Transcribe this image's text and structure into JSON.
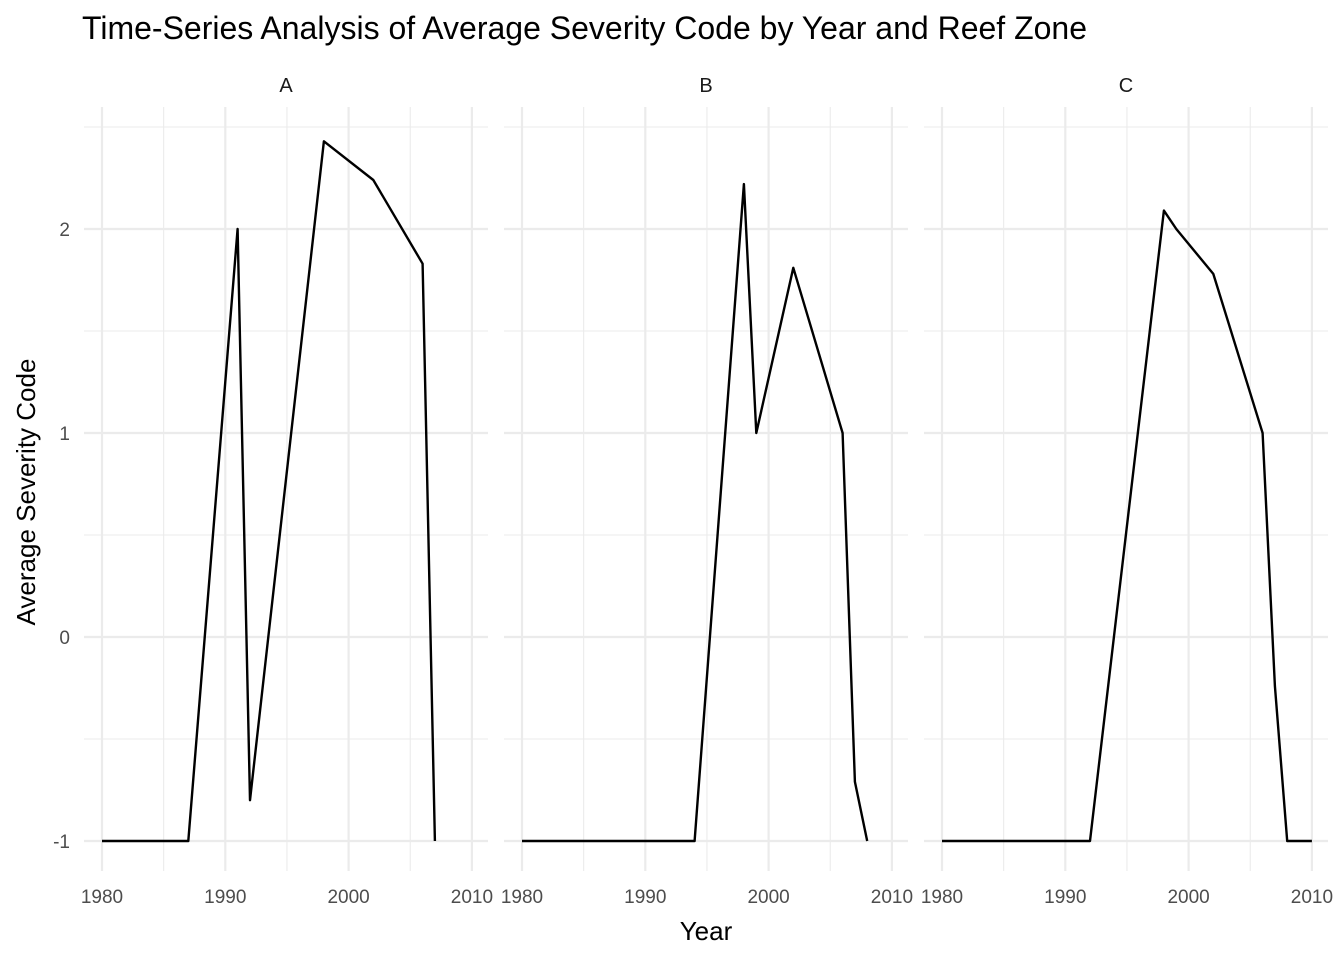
{
  "chart_data": {
    "type": "line",
    "title": "Time-Series Analysis of Average Severity Code by Year and Reef Zone",
    "xlabel": "Year",
    "ylabel": "Average Severity Code",
    "xlim": [
      1980,
      2010
    ],
    "ylim": [
      -1.15,
      2.55
    ],
    "x_ticks": [
      1980,
      1990,
      2000,
      2010
    ],
    "y_ticks": [
      -1,
      0,
      1,
      2
    ],
    "grid": true,
    "facets": [
      {
        "label": "A",
        "x": [
          1980,
          1987,
          1991,
          1992,
          1998,
          2002,
          2006,
          2007
        ],
        "y": [
          -1,
          -1,
          2,
          -0.8,
          2.43,
          2.24,
          1.83,
          -1
        ]
      },
      {
        "label": "B",
        "x": [
          1980,
          1994,
          1998,
          1999,
          2002,
          2006,
          2007,
          2008
        ],
        "y": [
          -1,
          -1,
          2.22,
          1,
          1.81,
          1,
          -0.71,
          -1
        ]
      },
      {
        "label": "C",
        "x": [
          1980,
          1992,
          1998,
          1999,
          2002,
          2006,
          2007,
          2008,
          2010
        ],
        "y": [
          -1,
          -1,
          2.09,
          2,
          1.78,
          1,
          -0.24,
          -1,
          -1
        ]
      }
    ]
  }
}
